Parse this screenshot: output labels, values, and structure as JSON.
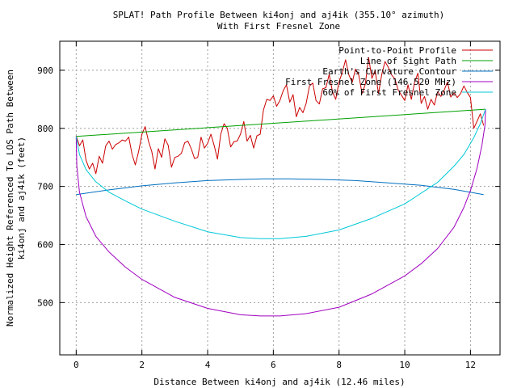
{
  "chart_data": {
    "type": "line",
    "title": "SPLAT! Path Profile Between ki4onj and aj4ik (355.10° azimuth)",
    "subtitle": "With First Fresnel Zone",
    "xlabel": "Distance Between ki4onj and aj4ik (12.46 miles)",
    "ylabel_lines": [
      "Normalized Height Referenced To LOS Path Between",
      "ki4onj and aj4ik (feet)"
    ],
    "xlim": [
      -0.5,
      12.9
    ],
    "ylim": [
      410,
      950
    ],
    "x_ticks": [
      0,
      2,
      4,
      6,
      8,
      10,
      12
    ],
    "y_ticks": [
      500,
      600,
      700,
      800,
      900
    ],
    "grid": true,
    "legend_position": "top-right",
    "series": [
      {
        "name": "Point-to-Point Profile",
        "color": "#cc0000",
        "x": [
          0,
          0.1,
          0.2,
          0.3,
          0.4,
          0.5,
          0.6,
          0.7,
          0.8,
          0.9,
          1.0,
          1.1,
          1.2,
          1.3,
          1.4,
          1.5,
          1.6,
          1.7,
          1.8,
          1.9,
          2.0,
          2.1,
          2.2,
          2.3,
          2.4,
          2.5,
          2.6,
          2.7,
          2.8,
          2.9,
          3.0,
          3.1,
          3.2,
          3.3,
          3.4,
          3.5,
          3.6,
          3.7,
          3.8,
          3.9,
          4.0,
          4.1,
          4.2,
          4.3,
          4.4,
          4.5,
          4.6,
          4.7,
          4.8,
          4.9,
          5.0,
          5.1,
          5.2,
          5.3,
          5.4,
          5.5,
          5.6,
          5.7,
          5.8,
          5.9,
          6.0,
          6.1,
          6.2,
          6.3,
          6.4,
          6.5,
          6.6,
          6.7,
          6.8,
          6.9,
          7.0,
          7.1,
          7.2,
          7.3,
          7.4,
          7.5,
          7.6,
          7.7,
          7.8,
          7.9,
          8.0,
          8.1,
          8.2,
          8.3,
          8.4,
          8.5,
          8.6,
          8.7,
          8.8,
          8.9,
          9.0,
          9.1,
          9.2,
          9.3,
          9.4,
          9.5,
          9.6,
          9.7,
          9.8,
          9.9,
          10.0,
          10.1,
          10.2,
          10.3,
          10.4,
          10.5,
          10.6,
          10.7,
          10.8,
          10.9,
          11.0,
          11.1,
          11.2,
          11.3,
          11.4,
          11.5,
          11.6,
          11.7,
          11.8,
          11.9,
          12.0,
          12.1,
          12.2,
          12.3,
          12.4
        ],
        "values": [
          787,
          770,
          780,
          745,
          730,
          740,
          722,
          752,
          740,
          770,
          778,
          764,
          772,
          775,
          780,
          778,
          785,
          755,
          737,
          760,
          790,
          803,
          778,
          760,
          730,
          765,
          750,
          782,
          771,
          733,
          750,
          752,
          757,
          775,
          778,
          765,
          748,
          750,
          785,
          766,
          774,
          790,
          770,
          747,
          790,
          808,
          800,
          768,
          777,
          778,
          790,
          812,
          778,
          788,
          766,
          787,
          790,
          832,
          850,
          848,
          856,
          838,
          848,
          865,
          875,
          845,
          858,
          820,
          836,
          827,
          843,
          873,
          878,
          848,
          842,
          868,
          870,
          893,
          863,
          850,
          880,
          897,
          918,
          892,
          879,
          902,
          892,
          860,
          876,
          922,
          886,
          900,
          860,
          893,
          915,
          905,
          892,
          885,
          866,
          857,
          848,
          875,
          850,
          880,
          895,
          843,
          855,
          833,
          850,
          840,
          863,
          855,
          866,
          880,
          854,
          861,
          853,
          860,
          873,
          862,
          853,
          800,
          812,
          825,
          805
        ]
      },
      {
        "name": "Line of Sight Path",
        "color": "#00a000",
        "x": [
          0,
          12.46
        ],
        "values": [
          786,
          833
        ]
      },
      {
        "name": "Earth's Curvature Contour",
        "color": "#0070c0",
        "x": [
          0,
          1,
          2,
          3,
          4,
          5,
          5.7,
          6.5,
          7.5,
          8.5,
          9.5,
          10.5,
          11.5,
          12.4
        ],
        "values": [
          686,
          694,
          701,
          706,
          710,
          712,
          713,
          713,
          712,
          710,
          706,
          702,
          695,
          686
        ]
      },
      {
        "name": "First Fresnel Zone (146.520 MHz)",
        "color": "#a000c0",
        "x": [
          0,
          0.02,
          0.1,
          0.3,
          0.6,
          1.0,
          1.5,
          2.0,
          3.0,
          4.0,
          5.0,
          5.6,
          6.2,
          7.0,
          8.0,
          9.0,
          10.0,
          10.5,
          11.0,
          11.5,
          11.8,
          12.0,
          12.2,
          12.35,
          12.44,
          12.46
        ],
        "values": [
          786,
          735,
          690,
          648,
          614,
          587,
          561,
          540,
          509,
          490,
          479,
          477,
          477,
          481,
          492,
          515,
          546,
          567,
          593,
          630,
          664,
          693,
          731,
          771,
          805,
          833
        ]
      },
      {
        "name": "60% of First Fresnel Zone",
        "color": "#00c8d8",
        "x": [
          0,
          0.1,
          0.3,
          0.6,
          1.0,
          1.5,
          2.0,
          3.0,
          4.0,
          5.0,
          5.6,
          6.2,
          7.0,
          8.0,
          9.0,
          10.0,
          11.0,
          11.5,
          11.8,
          12.1,
          12.3,
          12.46
        ],
        "values": [
          786,
          755,
          729,
          708,
          690,
          675,
          661,
          640,
          622,
          612,
          610,
          610,
          614,
          625,
          645,
          670,
          707,
          735,
          755,
          784,
          808,
          833
        ]
      }
    ]
  }
}
